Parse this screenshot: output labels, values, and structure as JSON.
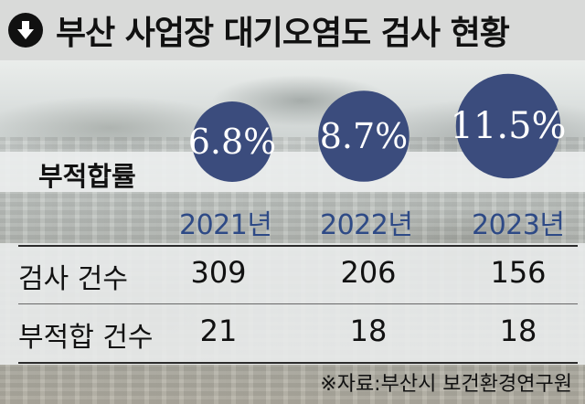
{
  "title": "부산 사업장 대기오염도 검사 현황",
  "title_icon": "arrow-down-circle-icon",
  "colors": {
    "bubble": "#3b4c7d",
    "year_text": "#2e4a86",
    "title_bg": "#d9dad9"
  },
  "rate_label": "부적합률",
  "chart_data": {
    "type": "bubble",
    "title": "부산 사업장 대기오염도 검사 현황",
    "categories": [
      "2021년",
      "2022년",
      "2023년"
    ],
    "series": [
      {
        "name": "부적합률",
        "values": [
          6.8,
          8.7,
          11.5
        ],
        "labels": [
          "6.8%",
          "8.7%",
          "11.5%"
        ]
      }
    ],
    "table": {
      "rows": [
        {
          "label": "검사 건수",
          "values": [
            "309",
            "206",
            "156"
          ]
        },
        {
          "label": "부적합 건수",
          "values": [
            "21",
            "18",
            "18"
          ]
        }
      ]
    },
    "source": "※자료:부산시 보건환경연구원"
  }
}
